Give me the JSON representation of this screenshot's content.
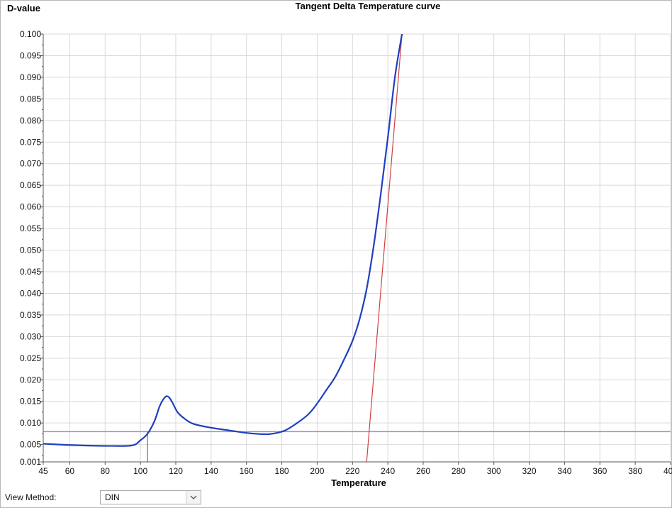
{
  "chart_data": {
    "type": "line",
    "title": "Tangent Delta Temperature curve",
    "ylabel": "D-value",
    "xlabel": "Temperature",
    "xlim": [
      45,
      400
    ],
    "ylim": [
      0.001,
      0.1
    ],
    "grid": true,
    "x_tick_labels": [
      "45",
      "60",
      "80",
      "100",
      "120",
      "140",
      "160",
      "180",
      "200",
      "220",
      "240",
      "260",
      "280",
      "300",
      "320",
      "340",
      "360",
      "380",
      "400"
    ],
    "y_tick_labels": [
      "0.100",
      "0.095",
      "0.090",
      "0.085",
      "0.080",
      "0.075",
      "0.070",
      "0.065",
      "0.060",
      "0.055",
      "0.050",
      "0.045",
      "0.040",
      "0.035",
      "0.030",
      "0.025",
      "0.020",
      "0.015",
      "0.010",
      "0.005",
      "0.001"
    ],
    "series": [
      {
        "color": "#1f3fbf",
        "x": [
          45,
          60,
          80,
          95,
          100,
          104,
          108,
          111,
          114,
          116,
          118,
          121,
          125,
          130,
          140,
          150,
          160,
          170,
          176,
          182,
          188,
          195,
          200,
          205,
          210,
          215,
          220,
          224,
          228,
          232,
          236,
          240,
          244,
          248
        ],
        "y": [
          0.0052,
          0.0049,
          0.0047,
          0.0048,
          0.006,
          0.0075,
          0.0105,
          0.014,
          0.016,
          0.016,
          0.0148,
          0.0125,
          0.011,
          0.0098,
          0.0089,
          0.0083,
          0.0077,
          0.0074,
          0.0076,
          0.0083,
          0.0098,
          0.012,
          0.0145,
          0.0175,
          0.0205,
          0.0245,
          0.029,
          0.034,
          0.041,
          0.051,
          0.063,
          0.076,
          0.09,
          0.1
        ]
      }
    ],
    "reference_lines": [
      {
        "orientation": "horizontal",
        "y": 0.008,
        "color": "#b57fd6"
      },
      {
        "orientation": "vertical",
        "x": 104,
        "y_from": 0.001,
        "y_to": 0.008,
        "color": "#d04040"
      },
      {
        "orientation": "tangent",
        "x": [
          228,
          248
        ],
        "y": [
          0.001,
          0.1
        ],
        "color": "#d04040"
      }
    ]
  },
  "controls": {
    "view_method_label": "View Method:",
    "view_method_value": "DIN"
  },
  "colors": {
    "grid": "#d9d9d9",
    "axis": "#555555"
  }
}
